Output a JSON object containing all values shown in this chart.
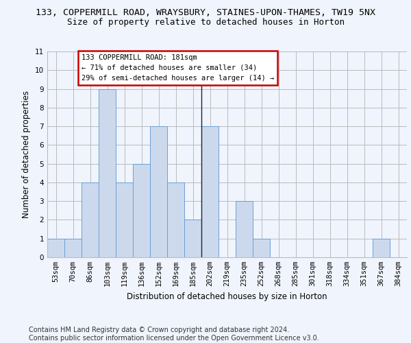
{
  "title_line1": "133, COPPERMILL ROAD, WRAYSBURY, STAINES-UPON-THAMES, TW19 5NX",
  "title_line2": "Size of property relative to detached houses in Horton",
  "xlabel": "Distribution of detached houses by size in Horton",
  "ylabel": "Number of detached properties",
  "categories": [
    "53sqm",
    "70sqm",
    "86sqm",
    "103sqm",
    "119sqm",
    "136sqm",
    "152sqm",
    "169sqm",
    "185sqm",
    "202sqm",
    "219sqm",
    "235sqm",
    "252sqm",
    "268sqm",
    "285sqm",
    "301sqm",
    "318sqm",
    "334sqm",
    "351sqm",
    "367sqm",
    "384sqm"
  ],
  "values": [
    1,
    1,
    4,
    9,
    4,
    5,
    7,
    4,
    2,
    7,
    0,
    3,
    1,
    0,
    0,
    0,
    0,
    0,
    0,
    1,
    0
  ],
  "bar_color": "#ccd9ed",
  "bar_edge_color": "#6b9fd4",
  "highlight_index": 8,
  "highlight_line_color": "#222222",
  "annotation_text": "133 COPPERMILL ROAD: 181sqm\n← 71% of detached houses are smaller (34)\n29% of semi-detached houses are larger (14) →",
  "annotation_box_color": "#ffffff",
  "annotation_box_edge_color": "#cc0000",
  "ylim": [
    0,
    11
  ],
  "yticks": [
    0,
    1,
    2,
    3,
    4,
    5,
    6,
    7,
    8,
    9,
    10,
    11
  ],
  "grid_color": "#bbbbbb",
  "background_color": "#f0f4fc",
  "footer_text": "Contains HM Land Registry data © Crown copyright and database right 2024.\nContains public sector information licensed under the Open Government Licence v3.0.",
  "title_fontsize": 9.5,
  "subtitle_fontsize": 9,
  "axis_label_fontsize": 8.5,
  "tick_fontsize": 7.5,
  "footer_fontsize": 7,
  "annotation_fontsize": 7.5
}
